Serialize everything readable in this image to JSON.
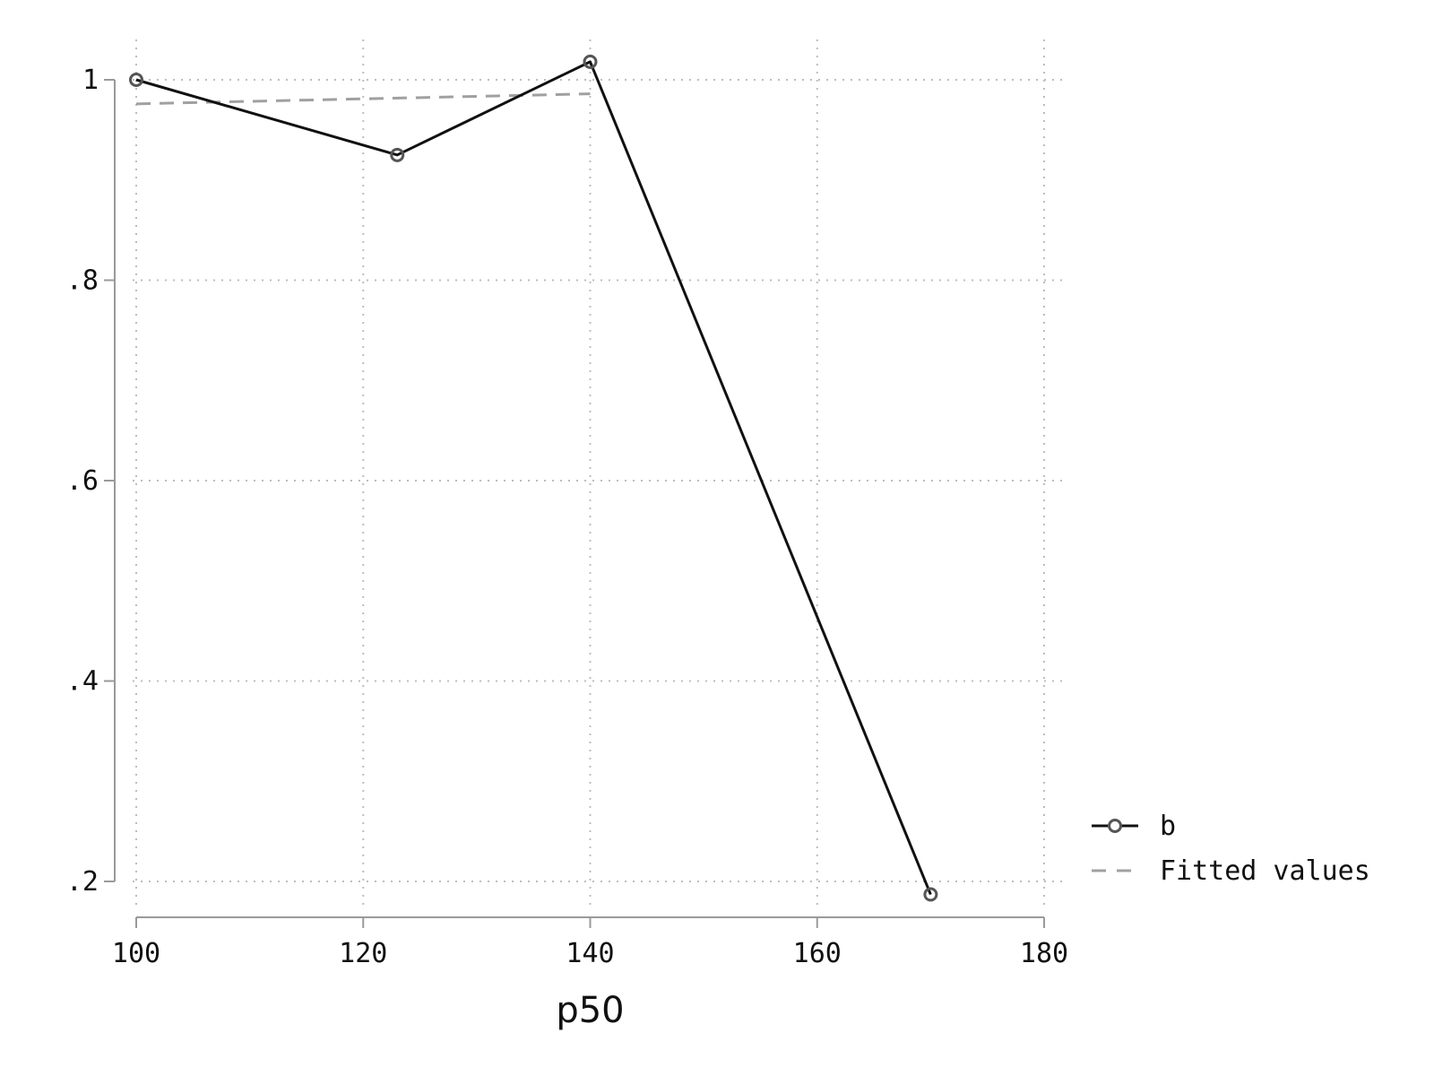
{
  "chart_data": {
    "type": "line",
    "xlabel": "p50",
    "ylabel": "",
    "xlim": [
      100,
      180
    ],
    "ylim": [
      0.2,
      1.0
    ],
    "x_ticks": [
      100,
      120,
      140,
      160,
      180
    ],
    "x_tick_labels": [
      "100",
      "120",
      "140",
      "160",
      "180"
    ],
    "y_ticks": [
      0.2,
      0.4,
      0.6,
      0.8,
      1.0
    ],
    "y_tick_labels": [
      ".2",
      ".4",
      ".6",
      ".8",
      "1"
    ],
    "grid": true,
    "legend_position": "right",
    "series": [
      {
        "name": "b",
        "style": "solid-with-markers",
        "color": "#111111",
        "marker_color": "#555555",
        "x": [
          100,
          123,
          140,
          170
        ],
        "y": [
          1.0,
          0.925,
          1.018,
          0.187
        ]
      },
      {
        "name": "Fitted values",
        "style": "dashed",
        "color": "#a0a0a0",
        "x": [
          100,
          140
        ],
        "y": [
          0.976,
          0.986
        ]
      }
    ]
  }
}
